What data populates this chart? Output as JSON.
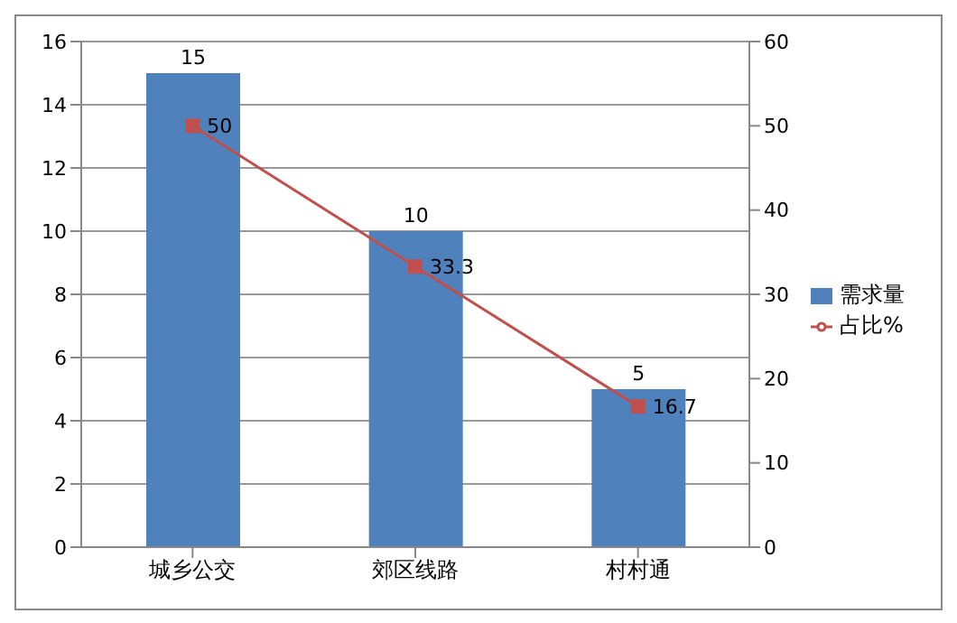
{
  "chart_data": {
    "type": "bar",
    "categories": [
      "城乡公交",
      "郊区线路",
      "村村通"
    ],
    "series": [
      {
        "name": "需求量",
        "color": "#4f81bd",
        "values": [
          15,
          10,
          5
        ]
      },
      {
        "name": "占比%",
        "type": "line",
        "axis": "y2",
        "color": "#c0504d",
        "marker": "square",
        "values": [
          50,
          33.3,
          16.7
        ]
      }
    ],
    "ylim": [
      0,
      16
    ],
    "yticks": [
      0,
      2,
      4,
      6,
      8,
      10,
      12,
      14,
      16
    ],
    "y2lim": [
      0,
      60
    ],
    "y2ticks": [
      0,
      10,
      20,
      30,
      40,
      50,
      60
    ],
    "grid": "y",
    "legend": "right",
    "data_labels": true
  }
}
